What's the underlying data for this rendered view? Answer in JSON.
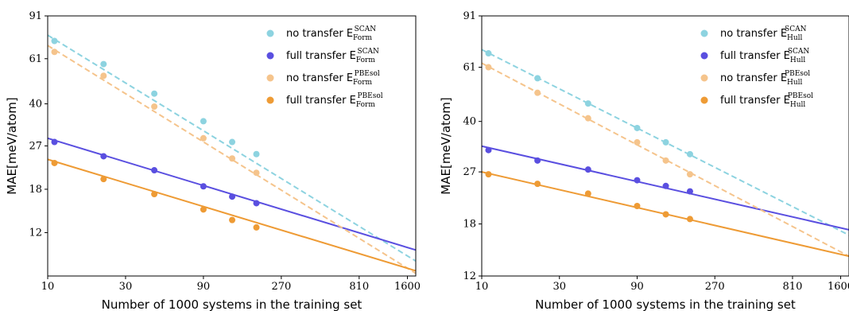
{
  "chart_data": [
    {
      "type": "scatter",
      "xscale": "log",
      "yscale": "log",
      "xlim": [
        10,
        1800
      ],
      "ylim": [
        8,
        91
      ],
      "xticks": [
        10,
        30,
        90,
        270,
        810,
        1600
      ],
      "xtick_labels": [
        "10",
        "30",
        "90",
        "270",
        "810",
        "1600"
      ],
      "yticks": [
        12,
        18,
        27,
        40,
        61,
        91
      ],
      "ytick_labels": [
        "12",
        "18",
        "27",
        "40",
        "61",
        "91"
      ],
      "xlabel": "Number of 1000 systems in the training set",
      "ylabel": "MAE[meV/atom]",
      "legend_position": "top-right",
      "grid": false,
      "series": [
        {
          "name": "no transfer",
          "sub": "Form",
          "sup": "SCAN",
          "color": "#8dd3e0",
          "fit": "dashed",
          "x": [
            11,
            22,
            45,
            90,
            135,
            190
          ],
          "y": [
            72,
            58,
            44,
            34,
            28,
            25
          ],
          "fit_y": [
            76,
            9.2
          ]
        },
        {
          "name": "full transfer",
          "sub": "Form",
          "sup": "SCAN",
          "color": "#5a4fe0",
          "fit": "solid",
          "x": [
            11,
            22,
            45,
            90,
            135,
            190
          ],
          "y": [
            28,
            24.5,
            21.5,
            18.5,
            16.8,
            15.8
          ],
          "fit_y": [
            29,
            10.2
          ]
        },
        {
          "name": "no transfer",
          "sub": "Form",
          "sup": "PBEsol",
          "color": "#f5c48c",
          "fit": "dashed",
          "x": [
            11,
            22,
            45,
            90,
            135,
            190
          ],
          "y": [
            65,
            52,
            39,
            29,
            24,
            21
          ],
          "fit_y": [
            69,
            8.2
          ]
        },
        {
          "name": "full transfer",
          "sub": "Form",
          "sup": "PBEsol",
          "color": "#ee9b35",
          "fit": "solid",
          "x": [
            11,
            22,
            45,
            90,
            135,
            190
          ],
          "y": [
            23,
            19.8,
            17.2,
            14.9,
            13.5,
            12.6
          ],
          "fit_y": [
            23.8,
            8.4
          ]
        }
      ]
    },
    {
      "type": "scatter",
      "xscale": "log",
      "yscale": "log",
      "xlim": [
        10,
        1800
      ],
      "ylim": [
        12,
        91
      ],
      "xticks": [
        10,
        30,
        90,
        270,
        810,
        1600
      ],
      "xtick_labels": [
        "10",
        "30",
        "90",
        "270",
        "810",
        "1600"
      ],
      "yticks": [
        12,
        18,
        27,
        40,
        61,
        91
      ],
      "ytick_labels": [
        "12",
        "18",
        "27",
        "40",
        "61",
        "91"
      ],
      "xlabel": "Number of 1000 systems in the training set",
      "ylabel": "MAE[meV/atom]",
      "legend_position": "top-right",
      "grid": false,
      "series": [
        {
          "name": "no transfer",
          "sub": "Hull",
          "sup": "SCAN",
          "color": "#8dd3e0",
          "fit": "dashed",
          "x": [
            11,
            22,
            45,
            90,
            135,
            190
          ],
          "y": [
            68,
            56,
            46,
            38,
            34,
            31
          ],
          "fit_y": [
            70,
            16.5
          ]
        },
        {
          "name": "full transfer",
          "sub": "Hull",
          "sup": "SCAN",
          "color": "#5a4fe0",
          "fit": "solid",
          "x": [
            11,
            22,
            45,
            90,
            135,
            190
          ],
          "y": [
            32,
            29.5,
            27.5,
            25.3,
            24.2,
            23.2
          ],
          "fit_y": [
            33,
            17.2
          ]
        },
        {
          "name": "no transfer",
          "sub": "Hull",
          "sup": "PBEsol",
          "color": "#f5c48c",
          "fit": "dashed",
          "x": [
            11,
            22,
            45,
            90,
            135,
            190
          ],
          "y": [
            61,
            50,
            41,
            34,
            29.5,
            26.5
          ],
          "fit_y": [
            63,
            14
          ]
        },
        {
          "name": "full transfer",
          "sub": "Hull",
          "sup": "PBEsol",
          "color": "#ee9b35",
          "fit": "solid",
          "x": [
            11,
            22,
            45,
            90,
            135,
            190
          ],
          "y": [
            26.5,
            24.6,
            22.8,
            20.7,
            19.4,
            18.7
          ],
          "fit_y": [
            27,
            14
          ]
        }
      ]
    }
  ]
}
